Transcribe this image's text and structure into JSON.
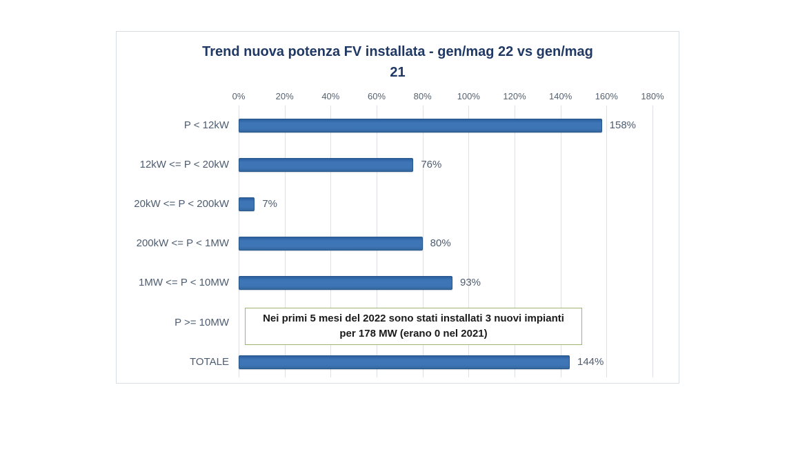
{
  "chart": {
    "title_color": "#1f3864",
    "bar_fill_color": "#3e75b7",
    "bar_border_color": "#27568a",
    "grid_color": "#dde1e7",
    "label_color": "#4d5c70",
    "panel_border_color": "#d8dce3",
    "annotation_border_color": "#9cb46f"
  },
  "chart_data": {
    "type": "bar",
    "orientation": "horizontal",
    "title": "Trend nuova potenza FV installata - gen/mag 22 vs gen/mag 21",
    "categories": [
      "P < 12kW",
      "12kW <= P < 20kW",
      "20kW <= P < 200kW",
      "200kW <= P < 1MW",
      "1MW <= P < 10MW",
      "P >= 10MW",
      "TOTALE"
    ],
    "values": [
      158,
      76,
      7,
      80,
      93,
      null,
      144
    ],
    "value_labels": [
      "158%",
      "76%",
      "7%",
      "80%",
      "93%",
      "",
      "144%"
    ],
    "x_ticks": [
      "0%",
      "20%",
      "40%",
      "60%",
      "80%",
      "100%",
      "120%",
      "140%",
      "160%",
      "180%"
    ],
    "x_tick_values": [
      0,
      20,
      40,
      60,
      80,
      100,
      120,
      140,
      160,
      180
    ],
    "xlim": [
      0,
      180
    ],
    "grid": true,
    "axis_position": "top",
    "legend": null,
    "xlabel": "",
    "ylabel": "",
    "annotation": {
      "text": "Nei primi 5 mesi del 2022 sono stati installati 3 nuovi impianti per 178 MW (erano 0 nel 2021)"
    }
  }
}
